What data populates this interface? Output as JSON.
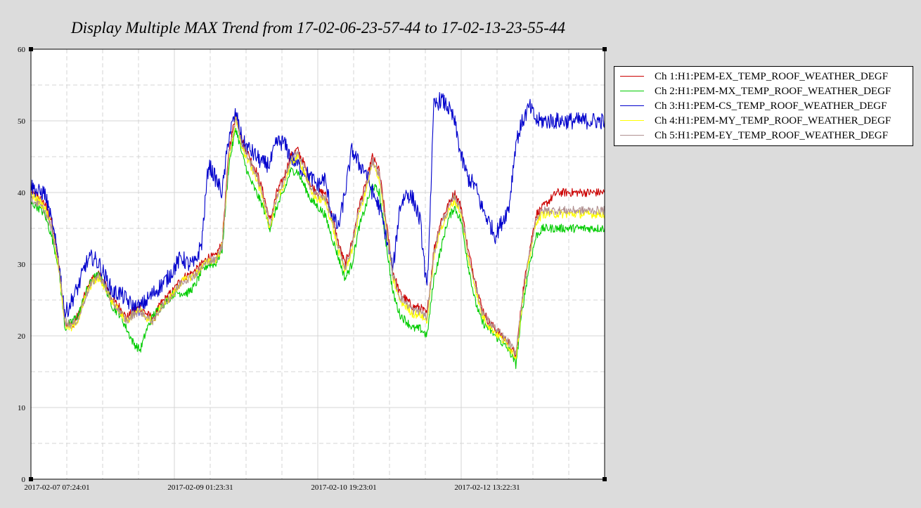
{
  "chart_data": {
    "type": "line",
    "title": "Display Multiple MAX Trend from 17-02-06-23-57-44 to 17-02-13-23-55-44",
    "xlabel": "",
    "ylabel": "",
    "x_ticks": [
      "2017-02-07 07:24:01",
      "2017-02-09 01:23:31",
      "2017-02-10 19:23:01",
      "2017-02-12 13:22:31"
    ],
    "x_range_hours": [
      0,
      168
    ],
    "ylim": [
      0,
      60
    ],
    "y_ticks": [
      0,
      10,
      20,
      30,
      40,
      50,
      60
    ],
    "grid": true,
    "legend_position": "right",
    "series": [
      {
        "name": "Ch 1:H1:PEM-EX_TEMP_ROOF_WEATHER_DEGF",
        "color": "#cc0000",
        "x": [
          0,
          2,
          4,
          6,
          8,
          10,
          12,
          14,
          16,
          18,
          20,
          22,
          24,
          26,
          28,
          30,
          32,
          34,
          36,
          38,
          40,
          42,
          44,
          46,
          48,
          50,
          52,
          54,
          56,
          58,
          60,
          62,
          64,
          66,
          68,
          70,
          72,
          74,
          76,
          78,
          80,
          82,
          84,
          86,
          88,
          90,
          92,
          94,
          96,
          98,
          100,
          102,
          104,
          106,
          108,
          110,
          112,
          114,
          116,
          118,
          120,
          122,
          124,
          126,
          128,
          130,
          132,
          134,
          136,
          138,
          140,
          142,
          144,
          146,
          148,
          150,
          152,
          154,
          156,
          158,
          160,
          162,
          164,
          166,
          168
        ],
        "values": [
          40,
          39.5,
          38.5,
          36,
          31,
          22,
          21.5,
          23,
          26,
          28,
          28.5,
          27,
          25,
          24,
          22.5,
          23.5,
          24,
          23,
          22.5,
          24.5,
          25.5,
          26.5,
          28,
          28.5,
          29,
          30,
          31,
          31,
          33,
          46,
          51,
          47,
          45,
          43,
          40,
          36,
          40,
          42,
          45,
          46,
          44,
          41,
          40,
          40,
          37,
          33,
          30,
          33,
          38,
          41,
          45,
          43,
          36,
          29,
          26,
          25,
          24,
          24,
          23,
          32,
          36,
          38,
          40,
          38,
          32,
          28,
          24,
          22,
          21,
          20,
          19,
          17,
          26,
          32,
          37,
          38,
          39,
          40,
          40,
          40,
          40,
          40,
          40,
          40,
          40
        ]
      },
      {
        "name": "Ch 2:H1:PEM-MX_TEMP_ROOF_WEATHER_DEGF",
        "color": "#00cc00",
        "x": [
          0,
          2,
          4,
          6,
          8,
          10,
          12,
          14,
          16,
          18,
          20,
          22,
          24,
          26,
          28,
          30,
          32,
          34,
          36,
          38,
          40,
          42,
          44,
          46,
          48,
          50,
          52,
          54,
          56,
          58,
          60,
          62,
          64,
          66,
          68,
          70,
          72,
          74,
          76,
          78,
          80,
          82,
          84,
          86,
          88,
          90,
          92,
          94,
          96,
          98,
          100,
          102,
          104,
          106,
          108,
          110,
          112,
          114,
          116,
          118,
          120,
          122,
          124,
          126,
          128,
          130,
          132,
          134,
          136,
          138,
          140,
          142,
          144,
          146,
          148,
          150,
          152,
          154,
          156,
          158,
          160,
          162,
          164,
          166,
          168
        ],
        "values": [
          38.5,
          38,
          37,
          34,
          30,
          21,
          22,
          23,
          26,
          28,
          28.5,
          26.5,
          24,
          23,
          21,
          19,
          18,
          21,
          23,
          24,
          25,
          26,
          26,
          26,
          27,
          29,
          30,
          30,
          32,
          44,
          49,
          45,
          42,
          40,
          38,
          35,
          38,
          40,
          43,
          43,
          41,
          39,
          38,
          37,
          34,
          31,
          28,
          30,
          35,
          38,
          41,
          40,
          33,
          26,
          23,
          22,
          21,
          21,
          20,
          28,
          32,
          36,
          38,
          36,
          30,
          25,
          22,
          21,
          20,
          19,
          18,
          16,
          24,
          30,
          34,
          35,
          35,
          35,
          35,
          35,
          35,
          35,
          35,
          35,
          35
        ]
      },
      {
        "name": "Ch 3:H1:PEM-CS_TEMP_ROOF_WEATHER_DEGF",
        "color": "#0000cc",
        "x": [
          0,
          2,
          4,
          6,
          8,
          10,
          12,
          14,
          16,
          18,
          20,
          22,
          24,
          26,
          28,
          30,
          32,
          34,
          36,
          38,
          40,
          42,
          44,
          46,
          48,
          50,
          52,
          54,
          56,
          58,
          60,
          62,
          64,
          66,
          68,
          70,
          72,
          74,
          76,
          78,
          80,
          82,
          84,
          86,
          88,
          90,
          92,
          94,
          96,
          98,
          100,
          102,
          104,
          106,
          108,
          110,
          112,
          114,
          116,
          118,
          120,
          122,
          124,
          126,
          128,
          130,
          132,
          134,
          136,
          138,
          140,
          142,
          144,
          146,
          148,
          150,
          152,
          154,
          156,
          158,
          160,
          162,
          164,
          166,
          168
        ],
        "values": [
          41,
          40,
          40,
          36,
          31,
          23,
          25,
          27,
          30,
          31,
          30,
          28,
          26,
          26,
          25,
          24,
          24,
          25,
          26,
          27,
          28,
          29.5,
          31,
          30,
          30,
          33,
          44,
          42,
          40,
          48,
          51,
          47,
          46,
          45,
          44,
          44,
          47,
          47,
          45,
          44,
          43,
          42,
          41,
          42,
          37,
          35,
          40,
          46,
          44,
          43,
          40,
          38,
          34,
          29,
          38,
          40,
          39,
          36,
          26,
          52,
          53,
          52,
          50,
          45,
          42,
          41,
          38,
          36,
          34,
          36,
          38,
          47,
          50,
          52,
          50,
          50,
          50,
          50,
          50,
          50,
          50,
          50,
          50,
          50,
          50
        ]
      },
      {
        "name": "Ch 4:H1:PEM-MY_TEMP_ROOF_WEATHER_DEGF",
        "color": "#ffff00",
        "x": [
          0,
          2,
          4,
          6,
          8,
          10,
          12,
          14,
          16,
          18,
          20,
          22,
          24,
          26,
          28,
          30,
          32,
          34,
          36,
          38,
          40,
          42,
          44,
          46,
          48,
          50,
          52,
          54,
          56,
          58,
          60,
          62,
          64,
          66,
          68,
          70,
          72,
          74,
          76,
          78,
          80,
          82,
          84,
          86,
          88,
          90,
          92,
          94,
          96,
          98,
          100,
          102,
          104,
          106,
          108,
          110,
          112,
          114,
          116,
          118,
          120,
          122,
          124,
          126,
          128,
          130,
          132,
          134,
          136,
          138,
          140,
          142,
          144,
          146,
          148,
          150,
          152,
          154,
          156,
          158,
          160,
          162,
          164,
          166,
          168
        ],
        "values": [
          39.5,
          39,
          38,
          35.5,
          30,
          21.5,
          21,
          22.5,
          25.5,
          27.5,
          28,
          26.5,
          24.5,
          23.5,
          22,
          23,
          23.5,
          22.5,
          22,
          24,
          25,
          26,
          27.5,
          28,
          28.5,
          29.5,
          30.5,
          30.5,
          32.5,
          45,
          50,
          46,
          44,
          42,
          39,
          35,
          39,
          41,
          44,
          45,
          43,
          40,
          39,
          39,
          36,
          32,
          29,
          32,
          37,
          40,
          44,
          42,
          35,
          28,
          25,
          24,
          23,
          23,
          22,
          31,
          35,
          37,
          39,
          37,
          31,
          27,
          23,
          21.5,
          20.5,
          19.5,
          18.5,
          17,
          25,
          31,
          36,
          37,
          37,
          37,
          37,
          37,
          37,
          37,
          37,
          37,
          37
        ]
      },
      {
        "name": "Ch 5:H1:PEM-EY_TEMP_ROOF_WEATHER_DEGF",
        "color": "#b09090",
        "x": [
          0,
          2,
          4,
          6,
          8,
          10,
          12,
          14,
          16,
          18,
          20,
          22,
          24,
          26,
          28,
          30,
          32,
          34,
          36,
          38,
          40,
          42,
          44,
          46,
          48,
          50,
          52,
          54,
          56,
          58,
          60,
          62,
          64,
          66,
          68,
          70,
          72,
          74,
          76,
          78,
          80,
          82,
          84,
          86,
          88,
          90,
          92,
          94,
          96,
          98,
          100,
          102,
          104,
          106,
          108,
          110,
          112,
          114,
          116,
          118,
          120,
          122,
          124,
          126,
          128,
          130,
          132,
          134,
          136,
          138,
          140,
          142,
          144,
          146,
          148,
          150,
          152,
          154,
          156,
          158,
          160,
          162,
          164,
          166,
          168
        ],
        "values": [
          39,
          38.5,
          37.5,
          35,
          30.5,
          22,
          21.5,
          22.5,
          25.5,
          27.5,
          28.5,
          26.5,
          24.5,
          23.5,
          22,
          23,
          23.5,
          22.5,
          22,
          24,
          25,
          26,
          27.5,
          28,
          28.5,
          29.5,
          30.5,
          30.5,
          32.5,
          45.5,
          50.5,
          46.5,
          44.5,
          42.5,
          39.5,
          35.5,
          39.5,
          41.5,
          44.5,
          45.5,
          43.5,
          40.5,
          39.5,
          39.5,
          36.5,
          32.5,
          29.5,
          32.5,
          37.5,
          40.5,
          44.5,
          42.5,
          35.5,
          28.5,
          25.5,
          24.5,
          23.5,
          23.5,
          22.5,
          31.5,
          35.5,
          37.5,
          39.5,
          37.5,
          31.5,
          27.5,
          23.5,
          22,
          21,
          20,
          19,
          17.5,
          25.5,
          31.5,
          36.5,
          37.5,
          37.5,
          37.5,
          37.5,
          37.5,
          37.5,
          37.5,
          37.5,
          37.5,
          37.5
        ]
      }
    ]
  }
}
